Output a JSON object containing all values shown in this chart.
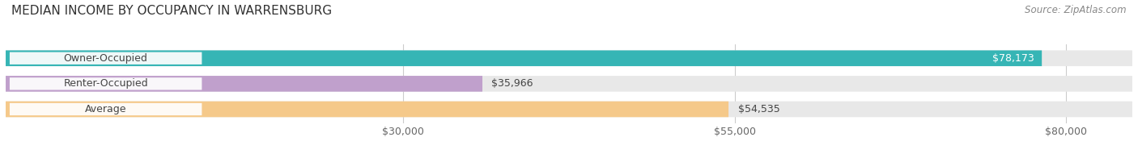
{
  "title": "MEDIAN INCOME BY OCCUPANCY IN WARRENSBURG",
  "source": "Source: ZipAtlas.com",
  "categories": [
    "Owner-Occupied",
    "Renter-Occupied",
    "Average"
  ],
  "values": [
    78173,
    35966,
    54535
  ],
  "bar_colors": [
    "#36b5b5",
    "#c0a0cc",
    "#f5c98a"
  ],
  "bar_bg_color": "#e8e8e8",
  "value_labels": [
    "$78,173",
    "$35,966",
    "$54,535"
  ],
  "value_inside": [
    true,
    false,
    false
  ],
  "xticks": [
    30000,
    55000,
    80000
  ],
  "xtick_labels": [
    "$30,000",
    "$55,000",
    "$80,000"
  ],
  "xmin": 0,
  "xmax": 85000,
  "title_fontsize": 11,
  "source_fontsize": 8.5,
  "label_fontsize": 9,
  "value_fontsize": 9,
  "tick_fontsize": 9,
  "background_color": "#ffffff",
  "label_pill_color": "#ffffff",
  "label_text_color": "#444444",
  "value_inside_color": "#ffffff",
  "value_outside_color": "#444444"
}
